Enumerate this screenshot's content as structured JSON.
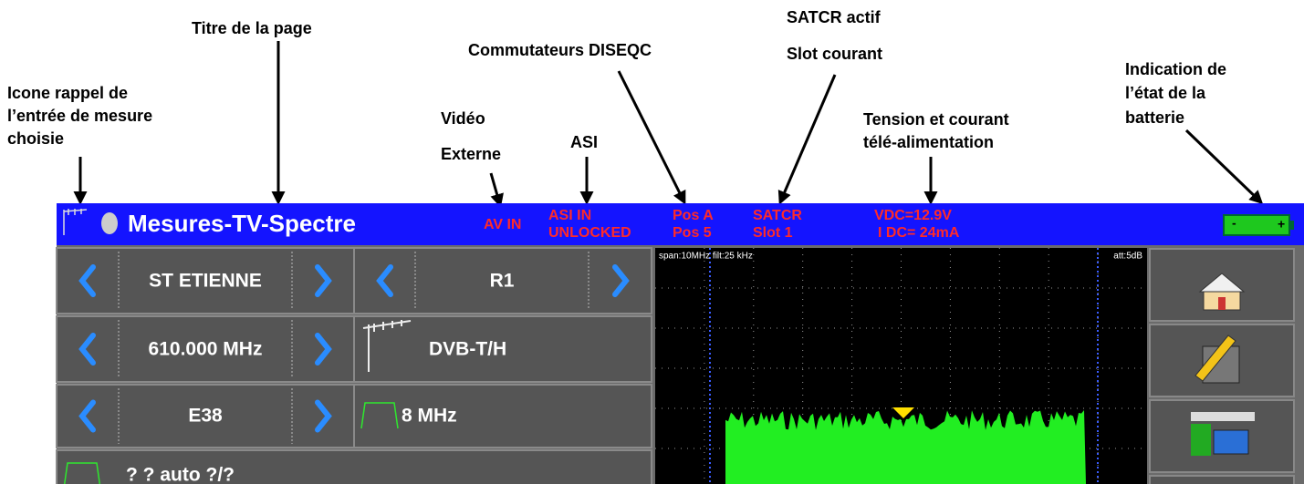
{
  "annotations": {
    "title_page": "Titre de la page",
    "input_icon": [
      "Icone rappel de",
      "l’entrée de mesure",
      "choisie"
    ],
    "video": [
      "Vidéo",
      "Externe"
    ],
    "asi": "ASI",
    "diseqc": "Commutateurs DISEQC",
    "satcr": [
      "SATCR actif",
      "Slot courant"
    ],
    "power": [
      "Tension et courant",
      "télé-alimentation"
    ],
    "battery": [
      "Indication de",
      "l’état de la",
      "batterie"
    ]
  },
  "header": {
    "title": "Mesures-TV-Spectre",
    "av": "AV IN",
    "asi": [
      "ASI IN",
      "UNLOCKED"
    ],
    "diseqc": [
      "Pos A",
      "Pos 5"
    ],
    "satcr": [
      "SATCR",
      "Slot 1"
    ],
    "power": [
      "VDC=12.9V",
      "I DC= 24mA"
    ]
  },
  "controls": {
    "site": "ST ETIENNE",
    "program": "R1",
    "frequency": "610.000 MHz",
    "standard": "DVB-T/H",
    "channel": "E38",
    "bandwidth": "8 MHz",
    "status": "? ? auto ?/?"
  },
  "spectrum": {
    "settings": "span:10MHz  filt:25 kHz",
    "attenuation": "att:5dB"
  }
}
